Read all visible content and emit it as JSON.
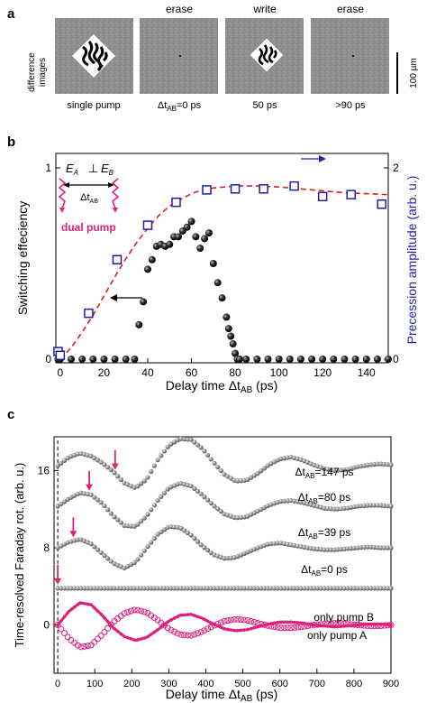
{
  "panel_a": {
    "letter": "a",
    "side_label_lines": [
      "difference",
      "images"
    ],
    "column_titles": [
      "",
      "erase",
      "write",
      "erase"
    ],
    "captions": [
      {
        "main": "single pump",
        "sub": "",
        "rest": ""
      },
      {
        "main": "Δt",
        "sub": "AB",
        "rest": "=0 ps"
      },
      {
        "main": "50 ps",
        "sub": "",
        "rest": ""
      },
      {
        "main": ">90 ps",
        "sub": "",
        "rest": ""
      }
    ],
    "scale_bar_label": "100 µm"
  },
  "panel_b": {
    "letter": "b",
    "inset": {
      "e_a": "E",
      "e_a_sub": "A",
      "perp": "⊥",
      "e_b": "E",
      "e_b_sub": "B",
      "delta_main": "Δt",
      "delta_sub": "AB",
      "dual_pump": "dual pump"
    }
  },
  "panel_c": {
    "letter": "c"
  },
  "colors": {
    "blue": "#1f1fa8",
    "red": "#e11d1d",
    "magenta": "#e0207e",
    "gray": "#8a8a8a",
    "black": "#111111"
  },
  "chart_data": [
    {
      "type": "scatter",
      "panel": "b",
      "xlabel_main": "Delay time Δt",
      "xlabel_sub": "AB",
      "xlabel_rest": " (ps)",
      "ylabel_left": "Switching effeciency",
      "ylabel_right": "Precession amplitude (arb. u.)",
      "xlim": [
        -2,
        150
      ],
      "ylim_left": [
        0,
        1
      ],
      "ylim_right": [
        0,
        2
      ],
      "xticks": [
        0,
        20,
        40,
        60,
        80,
        100,
        120,
        140
      ],
      "yticks_left": [
        0,
        1
      ],
      "yticks_right": [
        0,
        2
      ],
      "series": [
        {
          "axis": "left",
          "marker": "black-sphere",
          "x": [
            -1,
            0,
            5,
            10,
            15,
            20,
            25,
            30,
            34,
            36,
            38,
            40,
            42,
            44,
            46,
            48,
            50,
            52,
            54,
            56,
            58,
            60,
            62,
            64,
            66,
            68,
            70,
            72,
            74,
            76,
            77,
            78,
            79,
            80,
            81,
            82,
            85,
            90,
            95,
            100,
            105,
            110,
            115,
            120,
            125,
            130,
            135,
            140,
            145,
            150
          ],
          "y": [
            0,
            0,
            0,
            0,
            0,
            0,
            0,
            0,
            0,
            0.18,
            0.3,
            0.47,
            0.52,
            0.59,
            0.6,
            0.59,
            0.6,
            0.64,
            0.64,
            0.67,
            0.69,
            0.72,
            0.64,
            0.58,
            0.63,
            0.66,
            0.5,
            0.4,
            0.32,
            0.22,
            0.16,
            0.12,
            0.08,
            0.03,
            0,
            0,
            0,
            0,
            0,
            0,
            0,
            0,
            0,
            0,
            0,
            0,
            0,
            0,
            0,
            0
          ]
        },
        {
          "axis": "right",
          "marker": "blue-open-square",
          "x": [
            -1,
            0,
            13,
            26,
            40,
            53,
            67,
            80,
            93,
            107,
            120,
            133,
            147
          ],
          "y": [
            0.08,
            0.04,
            0.48,
            1.04,
            1.4,
            1.64,
            1.77,
            1.78,
            1.78,
            1.81,
            1.7,
            1.72,
            1.62
          ]
        },
        {
          "axis": "right",
          "style": "red-dashed-fit",
          "x": [
            0,
            5,
            10,
            15,
            20,
            25,
            30,
            35,
            40,
            45,
            50,
            55,
            60,
            65,
            70,
            75,
            80,
            90,
            100,
            110,
            120,
            130,
            140,
            150
          ],
          "y": [
            0.0,
            0.12,
            0.28,
            0.46,
            0.66,
            0.86,
            1.05,
            1.22,
            1.37,
            1.5,
            1.6,
            1.67,
            1.73,
            1.77,
            1.79,
            1.8,
            1.81,
            1.81,
            1.8,
            1.78,
            1.76,
            1.74,
            1.73,
            1.72
          ]
        }
      ]
    },
    {
      "type": "line",
      "panel": "c",
      "xlabel_main": "Delay time Δt",
      "xlabel_sub": "AB",
      "xlabel_rest": " (ps)",
      "ylabel": "Time-resolved Faraday rot. (arb. u.)",
      "xlim": [
        -10,
        900
      ],
      "ylim": [
        -5,
        19.5
      ],
      "xticks": [
        0,
        100,
        200,
        300,
        400,
        500,
        600,
        700,
        800,
        900
      ],
      "yticks": [
        0,
        8,
        16
      ],
      "series": [
        {
          "label_main": "Δt",
          "label_sub": "AB",
          "label_rest": "=147 ps",
          "offset": 16.5,
          "style": "gray-spheres",
          "arrow_x": 155,
          "x": [
            0,
            30,
            60,
            90,
            120,
            150,
            180,
            210,
            240,
            270,
            300,
            330,
            360,
            390,
            420,
            450,
            480,
            510,
            540,
            570,
            600,
            630,
            660,
            690,
            720,
            750,
            780,
            810,
            840,
            870,
            900
          ],
          "y": [
            0,
            0.9,
            1.3,
            1.0,
            0.3,
            -0.6,
            -1.8,
            -2.3,
            -1.4,
            0.6,
            2.1,
            2.8,
            2.7,
            1.8,
            0.4,
            -0.9,
            -1.6,
            -1.5,
            -0.8,
            0.1,
            0.7,
            0.9,
            0.6,
            0.1,
            -0.3,
            -0.5,
            -0.4,
            -0.1,
            0.1,
            0.2,
            0.1
          ]
        },
        {
          "label_main": "Δt",
          "label_sub": "AB",
          "label_rest": "=80 ps",
          "offset": 12.3,
          "style": "gray-spheres",
          "arrow_x": 85,
          "x": [
            0,
            30,
            60,
            90,
            120,
            150,
            180,
            210,
            240,
            270,
            300,
            330,
            360,
            390,
            420,
            450,
            480,
            510,
            540,
            570,
            600,
            630,
            660,
            690,
            720,
            750,
            780,
            810,
            840,
            870,
            900
          ],
          "y": [
            0,
            0.8,
            1.4,
            1.2,
            0.3,
            -1.0,
            -2.0,
            -2.1,
            -1.0,
            0.6,
            1.9,
            2.4,
            2.1,
            1.2,
            0.1,
            -0.8,
            -1.2,
            -1.1,
            -0.5,
            0.1,
            0.5,
            0.6,
            0.4,
            0.1,
            -0.2,
            -0.3,
            -0.2,
            0.0,
            0.1,
            0.1,
            0.0
          ]
        },
        {
          "label_main": "Δt",
          "label_sub": "AB",
          "label_rest": "=39 ps",
          "offset": 8,
          "style": "gray-spheres",
          "arrow_x": 42,
          "x": [
            0,
            30,
            60,
            90,
            120,
            150,
            180,
            210,
            240,
            270,
            300,
            330,
            360,
            390,
            420,
            450,
            480,
            510,
            540,
            570,
            600,
            630,
            660,
            690,
            720,
            750,
            780,
            810,
            840,
            870,
            900
          ],
          "y": [
            0,
            0.6,
            0.9,
            0.4,
            -0.6,
            -1.6,
            -2.1,
            -1.5,
            0.0,
            1.4,
            2.2,
            2.1,
            1.3,
            0.2,
            -0.7,
            -1.1,
            -1.0,
            -0.5,
            0.0,
            0.4,
            0.5,
            0.3,
            0.1,
            -0.1,
            -0.2,
            -0.2,
            -0.1,
            0.0,
            0.1,
            0.0,
            0.0
          ]
        },
        {
          "label_main": "Δt",
          "label_sub": "AB",
          "label_rest": "=0 ps",
          "offset": 3.8,
          "style": "gray-spheres",
          "arrow_x": 0,
          "x": [
            0,
            100,
            200,
            300,
            400,
            500,
            600,
            700,
            800,
            900
          ],
          "y": [
            0,
            0,
            0,
            0,
            0,
            0,
            0,
            0,
            0,
            0
          ]
        },
        {
          "label_main": "only pump B",
          "label_sub": "",
          "label_rest": "",
          "offset": 0,
          "style": "magenta-open-circles",
          "x": [
            0,
            30,
            60,
            90,
            120,
            150,
            180,
            210,
            240,
            270,
            300,
            330,
            360,
            390,
            420,
            450,
            480,
            510,
            540,
            570,
            600,
            630,
            660,
            690,
            720,
            750,
            780,
            810,
            840,
            870,
            900
          ],
          "y": [
            0,
            -1.4,
            -2.3,
            -2.1,
            -1.0,
            0.3,
            1.2,
            1.6,
            1.3,
            0.5,
            -0.4,
            -1.0,
            -1.1,
            -0.7,
            -0.1,
            0.4,
            0.6,
            0.5,
            0.2,
            -0.1,
            -0.3,
            -0.3,
            -0.2,
            0.0,
            0.1,
            0.2,
            0.1,
            0.0,
            -0.1,
            -0.1,
            0.0
          ]
        },
        {
          "label_main": "only pump A",
          "label_sub": "",
          "label_rest": "",
          "offset": 0,
          "style": "magenta-filled",
          "x": [
            0,
            30,
            60,
            90,
            120,
            150,
            180,
            210,
            240,
            270,
            300,
            330,
            360,
            390,
            420,
            450,
            480,
            510,
            540,
            570,
            600,
            630,
            660,
            690,
            720,
            750,
            780,
            810,
            840,
            870,
            900
          ],
          "y": [
            0,
            1.4,
            2.3,
            2.1,
            1.0,
            -0.3,
            -1.2,
            -1.6,
            -1.3,
            -0.5,
            0.4,
            1.0,
            1.1,
            0.7,
            0.1,
            -0.4,
            -0.6,
            -0.5,
            -0.2,
            0.1,
            0.3,
            0.3,
            0.2,
            0.0,
            -0.1,
            -0.2,
            -0.1,
            0.0,
            0.1,
            0.1,
            0.0
          ]
        }
      ]
    }
  ]
}
